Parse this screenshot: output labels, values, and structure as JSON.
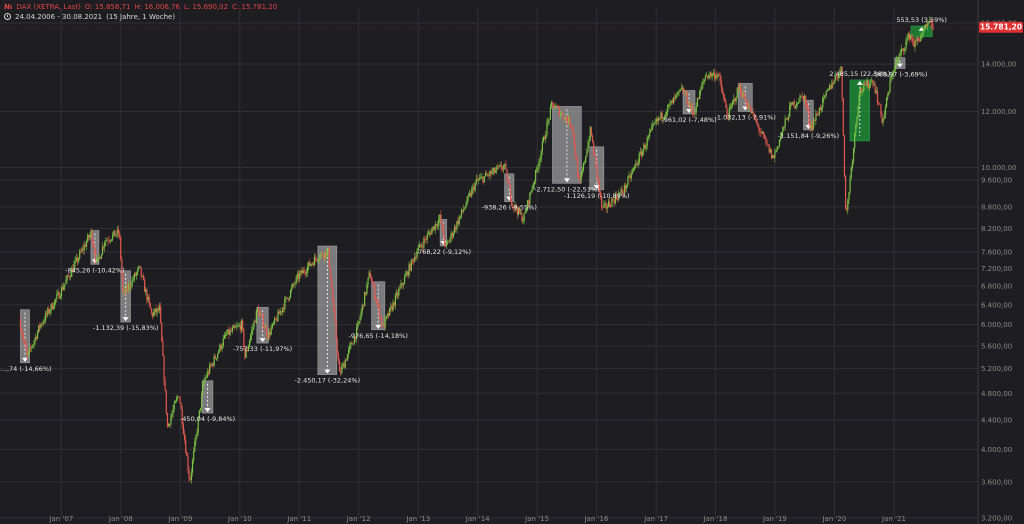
{
  "header": {
    "ticker_icon": "№",
    "instrument": "DAX (XETRA, Last)",
    "open": "O: 15.858,71",
    "high": "H: 16.006,76",
    "low": "L: 15.690,02",
    "close": "C: 15.781,20",
    "date_range": "24.04.2006 - 30.08.2021",
    "interval": "(15 Jahre, 1 Woche)"
  },
  "colors": {
    "background": "#1e1e22",
    "up": "#7cc243",
    "down": "#e0574f",
    "grid": "#2f2f35",
    "drawdown_box": "#c8c8c8",
    "gain_box": "#1f9a3a",
    "price_tag": "#e03030",
    "axis_text": "#8a8a8a"
  },
  "icons": {
    "clock": "clock-icon",
    "ticker": "ticker-icon"
  },
  "chart_data": {
    "type": "candlestick",
    "scale": "log",
    "ylim": [
      3200,
      16800
    ],
    "xlim": [
      "2006-04-24",
      "2021-08-30"
    ],
    "grid": true,
    "y_ticks": [
      3200,
      3600,
      4000,
      4400,
      4800,
      5200,
      5600,
      6000,
      6400,
      6800,
      7200,
      7600,
      8200,
      8800,
      9600,
      10000,
      12000,
      14000,
      16000
    ],
    "y_tick_labels": [
      "3.200,00",
      "3.600,00",
      "4.000,00",
      "4.400,00",
      "4.800,00",
      "5.200,00",
      "5.600,00",
      "6.000,00",
      "6.400,00",
      "6.800,00",
      "7.200,00",
      "7.600,00",
      "8.200,00",
      "8.800,00",
      "9.600,00",
      "10.000,00",
      "12.000,00",
      "14.000,00",
      "16.000,00"
    ],
    "x_ticks": [
      "2007-01-01",
      "2008-01-01",
      "2009-01-01",
      "2010-01-01",
      "2011-01-01",
      "2012-01-01",
      "2013-01-01",
      "2014-01-01",
      "2015-01-01",
      "2016-01-01",
      "2017-01-01",
      "2018-01-01",
      "2019-01-01",
      "2020-01-01",
      "2021-01-01"
    ],
    "x_tick_labels": [
      "Jan '07",
      "Jan '08",
      "Jan '09",
      "Jan '10",
      "Jan '11",
      "Jan '12",
      "Jan '13",
      "Jan '14",
      "Jan '15",
      "Jan '16",
      "Jan '17",
      "Jan '18",
      "Jan '19",
      "Jan '20",
      "Jan '21"
    ],
    "last_price": 15781.2,
    "last_price_label": "15.781,20",
    "price_path": [
      [
        "2006-04-24",
        6100
      ],
      [
        "2006-06-12",
        5400
      ],
      [
        "2006-09-01",
        6000
      ],
      [
        "2006-12-20",
        6600
      ],
      [
        "2007-04-01",
        7300
      ],
      [
        "2007-07-10",
        8100
      ],
      [
        "2007-08-15",
        7300
      ],
      [
        "2007-10-01",
        7900
      ],
      [
        "2007-12-28",
        8100
      ],
      [
        "2008-01-22",
        6600
      ],
      [
        "2008-05-01",
        7200
      ],
      [
        "2008-07-15",
        6200
      ],
      [
        "2008-09-01",
        6300
      ],
      [
        "2008-10-20",
        4300
      ],
      [
        "2008-12-30",
        4800
      ],
      [
        "2009-03-06",
        3600
      ],
      [
        "2009-06-01",
        5000
      ],
      [
        "2009-10-15",
        5800
      ],
      [
        "2010-01-20",
        6000
      ],
      [
        "2010-02-08",
        5400
      ],
      [
        "2010-04-26",
        6300
      ],
      [
        "2010-07-01",
        5800
      ],
      [
        "2010-12-30",
        7000
      ],
      [
        "2011-05-02",
        7500
      ],
      [
        "2011-07-04",
        7600
      ],
      [
        "2011-09-12",
        5100
      ],
      [
        "2011-12-30",
        5900
      ],
      [
        "2012-03-16",
        7100
      ],
      [
        "2012-06-04",
        5950
      ],
      [
        "2012-12-28",
        7600
      ],
      [
        "2013-05-22",
        8500
      ],
      [
        "2013-06-24",
        7700
      ],
      [
        "2013-12-30",
        9550
      ],
      [
        "2014-06-20",
        10050
      ],
      [
        "2014-08-08",
        8900
      ],
      [
        "2014-10-16",
        8450
      ],
      [
        "2014-12-30",
        9800
      ],
      [
        "2015-04-10",
        12300
      ],
      [
        "2015-08-10",
        11500
      ],
      [
        "2015-09-24",
        9400
      ],
      [
        "2015-12-02",
        11300
      ],
      [
        "2016-02-11",
        8700
      ],
      [
        "2016-06-24",
        9300
      ],
      [
        "2016-12-30",
        11500
      ],
      [
        "2017-06-20",
        12900
      ],
      [
        "2017-08-25",
        11900
      ],
      [
        "2017-11-06",
        13500
      ],
      [
        "2018-01-23",
        13550
      ],
      [
        "2018-03-23",
        11800
      ],
      [
        "2018-06-01",
        13000
      ],
      [
        "2018-12-27",
        10300
      ],
      [
        "2019-04-15",
        12200
      ],
      [
        "2019-07-05",
        12650
      ],
      [
        "2019-08-15",
        11400
      ],
      [
        "2019-12-30",
        13250
      ],
      [
        "2020-02-19",
        13750
      ],
      [
        "2020-03-18",
        8450
      ],
      [
        "2020-06-08",
        12800
      ],
      [
        "2020-09-02",
        13300
      ],
      [
        "2020-10-30",
        11600
      ],
      [
        "2020-12-30",
        13700
      ],
      [
        "2021-04-16",
        15450
      ],
      [
        "2021-05-12",
        14900
      ],
      [
        "2021-08-13",
        15980
      ],
      [
        "2021-08-30",
        15781
      ]
    ],
    "annotations": [
      {
        "kind": "drawdown",
        "label": "-...,74 (-14,66%)",
        "x1": "2006-04-24",
        "x2": "2006-06-20",
        "y_high": 6300,
        "y_low": 5300
      },
      {
        "kind": "drawdown",
        "label": "-845,26 (-10,42%)",
        "x1": "2007-07-01",
        "x2": "2007-08-20",
        "y_high": 8150,
        "y_low": 7300
      },
      {
        "kind": "drawdown",
        "label": "-1.132,39 (-15,83%)",
        "x1": "2008-01-01",
        "x2": "2008-03-01",
        "y_high": 7150,
        "y_low": 6050
      },
      {
        "kind": "drawdown",
        "label": "-450,04 (-9,84%)",
        "x1": "2009-05-15",
        "x2": "2009-07-20",
        "y_high": 5000,
        "y_low": 4500
      },
      {
        "kind": "drawdown",
        "label": "-757,33 (-11,97%)",
        "x1": "2010-04-15",
        "x2": "2010-06-25",
        "y_high": 6350,
        "y_low": 5650
      },
      {
        "kind": "drawdown",
        "label": "-2.450,17 (-32,24%)",
        "x1": "2011-04-25",
        "x2": "2011-08-20",
        "y_high": 7750,
        "y_low": 5100
      },
      {
        "kind": "drawdown",
        "label": "-976,65 (-14,18%)",
        "x1": "2012-03-20",
        "x2": "2012-06-10",
        "y_high": 6900,
        "y_low": 5900
      },
      {
        "kind": "drawdown",
        "label": "-768,22 (-9,12%)",
        "x1": "2013-05-15",
        "x2": "2013-06-25",
        "y_high": 8450,
        "y_low": 7750
      },
      {
        "kind": "drawdown",
        "label": "-938,26 (-9,55%)",
        "x1": "2014-06-15",
        "x2": "2014-08-12",
        "y_high": 9800,
        "y_low": 8950
      },
      {
        "kind": "drawdown",
        "label": "-2.712,50 (-22,51%)",
        "x1": "2015-04-05",
        "x2": "2015-09-30",
        "y_high": 12200,
        "y_low": 9500
      },
      {
        "kind": "drawdown",
        "label": "-1.126,19 (-10,89%)",
        "x1": "2015-11-20",
        "x2": "2016-02-15",
        "y_high": 10700,
        "y_low": 9300
      },
      {
        "kind": "drawdown",
        "label": "-961,02 (-7,48%)",
        "x1": "2017-06-15",
        "x2": "2017-08-28",
        "y_high": 12850,
        "y_low": 11900
      },
      {
        "kind": "drawdown",
        "label": "-1.032,13 (-7,91%)",
        "x1": "2018-05-20",
        "x2": "2018-08-15",
        "y_high": 13150,
        "y_low": 12000
      },
      {
        "kind": "drawdown",
        "label": "-1.151,84 (-9,26%)",
        "x1": "2019-06-25",
        "x2": "2019-08-25",
        "y_high": 12450,
        "y_low": 11300
      },
      {
        "kind": "gain",
        "label": "2.485,15 (22,56%)",
        "x1": "2020-04-05",
        "x2": "2020-08-05",
        "y_high": 13300,
        "y_low": 10900
      },
      {
        "kind": "drawdown",
        "label": "-568,97 (-3,69%)",
        "x1": "2021-01-05",
        "x2": "2021-03-10",
        "y_high": 14300,
        "y_low": 13800
      },
      {
        "kind": "gain",
        "label": "553,53 (3,59%)",
        "x1": "2021-04-15",
        "x2": "2021-08-25",
        "y_high": 15850,
        "y_low": 15300
      }
    ]
  }
}
